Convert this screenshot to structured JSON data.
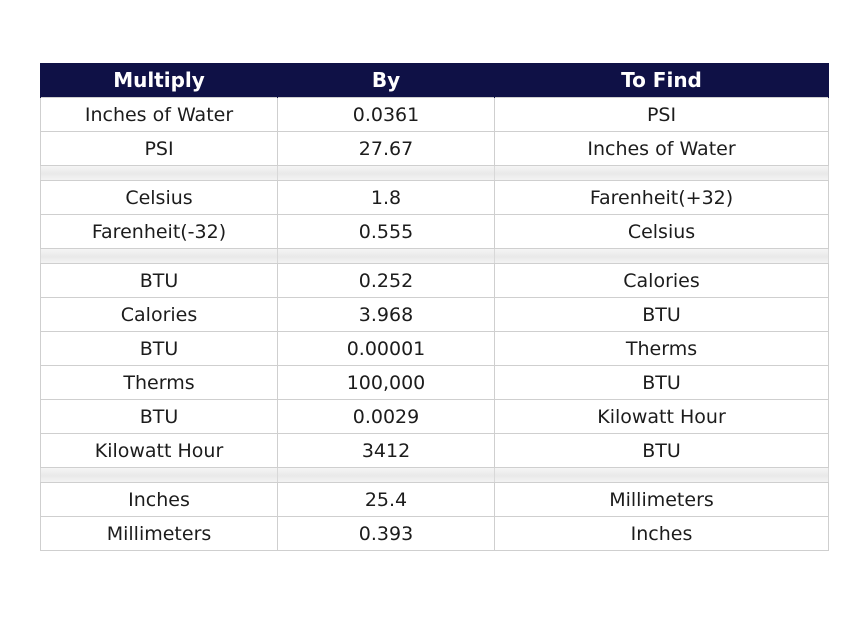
{
  "table": {
    "headers": [
      "Multiply",
      "By",
      "To Find"
    ],
    "rows": [
      [
        "Inches of Water",
        "0.0361",
        "PSI"
      ],
      [
        "PSI",
        "27.67",
        "Inches of Water"
      ],
      null,
      [
        "Celsius",
        "1.8",
        "Farenheit(+32)"
      ],
      [
        "Farenheit(-32)",
        "0.555",
        "Celsius"
      ],
      null,
      [
        "BTU",
        "0.252",
        "Calories"
      ],
      [
        "Calories",
        "3.968",
        "BTU"
      ],
      [
        "BTU",
        "0.00001",
        "Therms"
      ],
      [
        "Therms",
        "100,000",
        "BTU"
      ],
      [
        "BTU",
        "0.0029",
        "Kilowatt Hour"
      ],
      [
        "Kilowatt Hour",
        "3412",
        "BTU"
      ],
      null,
      [
        "Inches",
        "25.4",
        "Millimeters"
      ],
      [
        "Millimeters",
        "0.393",
        "Inches"
      ]
    ]
  },
  "colors": {
    "header_background": "#0f1146",
    "header_text": "#ffffff",
    "cell_text": "#1c1c1c",
    "grid_line": "#cfcfcf"
  }
}
